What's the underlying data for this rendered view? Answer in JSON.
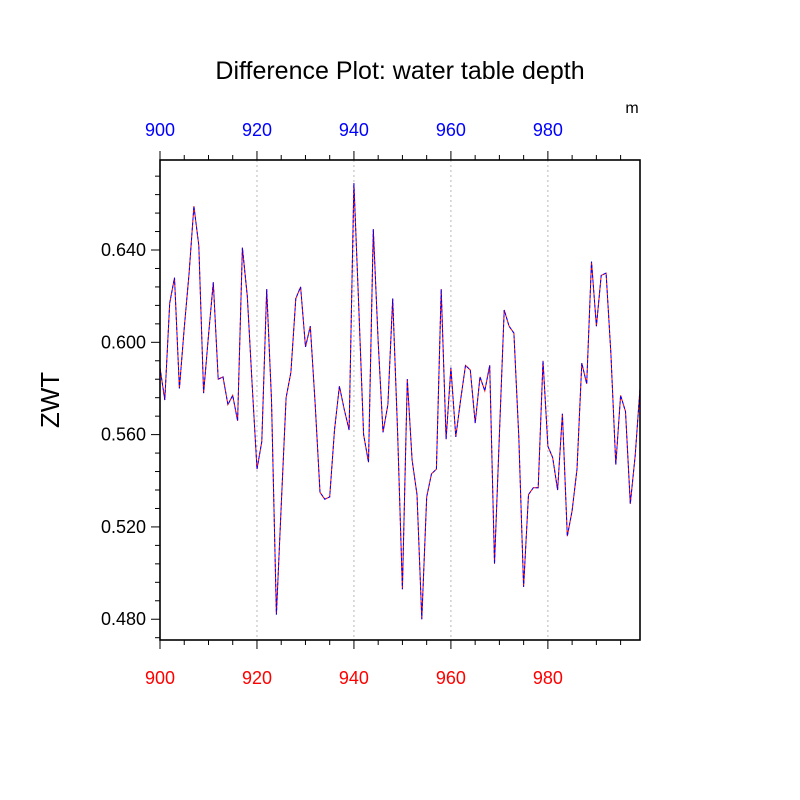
{
  "chart_data": {
    "type": "line",
    "title": "Difference Plot: water table depth",
    "ylabel": "ZWT",
    "top_axis_unit": "m",
    "xlim": [
      900,
      999
    ],
    "ylim": [
      0.471,
      0.679
    ],
    "grid": "vertical dotted at major x ticks",
    "x_ticks": [
      900,
      920,
      940,
      960,
      980
    ],
    "x_tick_labels": [
      "900",
      "920",
      "940",
      "960",
      "980"
    ],
    "y_ticks": [
      0.48,
      0.52,
      0.56,
      0.6,
      0.64
    ],
    "y_tick_labels": [
      "0.480",
      "0.520",
      "0.560",
      "0.600",
      "0.640"
    ],
    "colors": {
      "bottom_axis_labels": "#ff0000",
      "top_axis_labels": "#0000ff",
      "series_a": "#ff0000",
      "series_b": "#0000ff"
    },
    "series": [
      {
        "line_color": "#ff0000",
        "dash": "solid",
        "x": [
          900,
          901,
          902,
          903,
          904,
          905,
          906,
          907,
          908,
          909,
          910,
          911,
          912,
          913,
          914,
          915,
          916,
          917,
          918,
          919,
          920,
          921,
          922,
          923,
          924,
          925,
          926,
          927,
          928,
          929,
          930,
          931,
          932,
          933,
          934,
          935,
          936,
          937,
          938,
          939,
          940,
          941,
          942,
          943,
          944,
          945,
          946,
          947,
          948,
          949,
          950,
          951,
          952,
          953,
          954,
          955,
          956,
          957,
          958,
          959,
          960,
          961,
          962,
          963,
          964,
          965,
          966,
          967,
          968,
          969,
          970,
          971,
          972,
          973,
          974,
          975,
          976,
          977,
          978,
          979,
          980,
          981,
          982,
          983,
          984,
          985,
          986,
          987,
          988,
          989,
          990,
          991,
          992,
          993,
          994,
          995,
          996,
          997,
          998,
          999
        ],
        "y": [
          0.589,
          0.575,
          0.617,
          0.628,
          0.58,
          0.606,
          0.63,
          0.659,
          0.642,
          0.578,
          0.603,
          0.626,
          0.584,
          0.585,
          0.573,
          0.577,
          0.566,
          0.641,
          0.62,
          0.582,
          0.545,
          0.557,
          0.623,
          0.575,
          0.482,
          0.529,
          0.576,
          0.587,
          0.619,
          0.624,
          0.598,
          0.607,
          0.573,
          0.535,
          0.532,
          0.533,
          0.562,
          0.581,
          0.571,
          0.562,
          0.669,
          0.615,
          0.56,
          0.548,
          0.649,
          0.6,
          0.561,
          0.573,
          0.619,
          0.561,
          0.493,
          0.584,
          0.549,
          0.534,
          0.48,
          0.533,
          0.543,
          0.545,
          0.623,
          0.558,
          0.589,
          0.559,
          0.575,
          0.59,
          0.588,
          0.565,
          0.585,
          0.579,
          0.59,
          0.504,
          0.56,
          0.614,
          0.607,
          0.604,
          0.559,
          0.494,
          0.534,
          0.537,
          0.537,
          0.592,
          0.555,
          0.55,
          0.536,
          0.569,
          0.516,
          0.527,
          0.545,
          0.591,
          0.582,
          0.635,
          0.607,
          0.629,
          0.63,
          0.595,
          0.547,
          0.577,
          0.57,
          0.53,
          0.551,
          0.58
        ]
      },
      {
        "line_color": "#0000ff",
        "dash": "dashed",
        "x": [
          900,
          901,
          902,
          903,
          904,
          905,
          906,
          907,
          908,
          909,
          910,
          911,
          912,
          913,
          914,
          915,
          916,
          917,
          918,
          919,
          920,
          921,
          922,
          923,
          924,
          925,
          926,
          927,
          928,
          929,
          930,
          931,
          932,
          933,
          934,
          935,
          936,
          937,
          938,
          939,
          940,
          941,
          942,
          943,
          944,
          945,
          946,
          947,
          948,
          949,
          950,
          951,
          952,
          953,
          954,
          955,
          956,
          957,
          958,
          959,
          960,
          961,
          962,
          963,
          964,
          965,
          966,
          967,
          968,
          969,
          970,
          971,
          972,
          973,
          974,
          975,
          976,
          977,
          978,
          979,
          980,
          981,
          982,
          983,
          984,
          985,
          986,
          987,
          988,
          989,
          990,
          991,
          992,
          993,
          994,
          995,
          996,
          997,
          998,
          999
        ],
        "y": [
          0.589,
          0.575,
          0.617,
          0.628,
          0.58,
          0.606,
          0.63,
          0.659,
          0.642,
          0.578,
          0.603,
          0.626,
          0.584,
          0.585,
          0.573,
          0.577,
          0.566,
          0.641,
          0.62,
          0.582,
          0.545,
          0.557,
          0.623,
          0.575,
          0.482,
          0.529,
          0.576,
          0.587,
          0.619,
          0.624,
          0.598,
          0.607,
          0.573,
          0.535,
          0.532,
          0.533,
          0.562,
          0.581,
          0.571,
          0.562,
          0.669,
          0.615,
          0.56,
          0.548,
          0.649,
          0.6,
          0.561,
          0.573,
          0.619,
          0.561,
          0.493,
          0.584,
          0.549,
          0.534,
          0.48,
          0.533,
          0.543,
          0.545,
          0.623,
          0.558,
          0.589,
          0.559,
          0.575,
          0.59,
          0.588,
          0.565,
          0.585,
          0.579,
          0.59,
          0.504,
          0.56,
          0.614,
          0.607,
          0.604,
          0.559,
          0.494,
          0.534,
          0.537,
          0.537,
          0.592,
          0.555,
          0.55,
          0.536,
          0.569,
          0.516,
          0.527,
          0.545,
          0.591,
          0.582,
          0.635,
          0.607,
          0.629,
          0.63,
          0.595,
          0.547,
          0.577,
          0.57,
          0.53,
          0.551,
          0.58
        ]
      }
    ]
  }
}
